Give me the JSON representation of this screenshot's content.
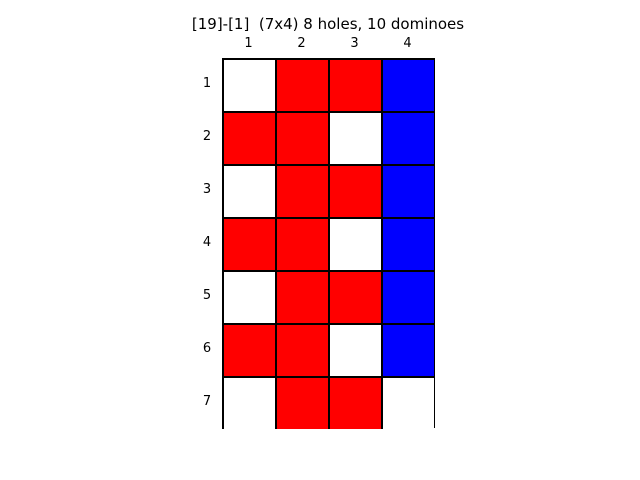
{
  "title": "[19]-[1]  (7x4) 8 holes, 10 dominoes",
  "col_labels": [
    "1",
    "2",
    "3",
    "4"
  ],
  "row_labels": [
    "1",
    "2",
    "3",
    "4",
    "5",
    "6",
    "7"
  ],
  "colors": {
    "hole": "#ffffff",
    "horizontal_domino": "#ff0000",
    "vertical_domino": "#0000ff",
    "grid_line": "#000000"
  },
  "cells": [
    [
      "hole",
      "horizontal_domino",
      "horizontal_domino",
      "vertical_domino"
    ],
    [
      "horizontal_domino",
      "horizontal_domino",
      "hole",
      "vertical_domino"
    ],
    [
      "hole",
      "horizontal_domino",
      "horizontal_domino",
      "vertical_domino"
    ],
    [
      "horizontal_domino",
      "horizontal_domino",
      "hole",
      "vertical_domino"
    ],
    [
      "hole",
      "horizontal_domino",
      "horizontal_domino",
      "vertical_domino"
    ],
    [
      "horizontal_domino",
      "horizontal_domino",
      "hole",
      "vertical_domino"
    ],
    [
      "hole",
      "horizontal_domino",
      "horizontal_domino",
      "hole"
    ]
  ]
}
